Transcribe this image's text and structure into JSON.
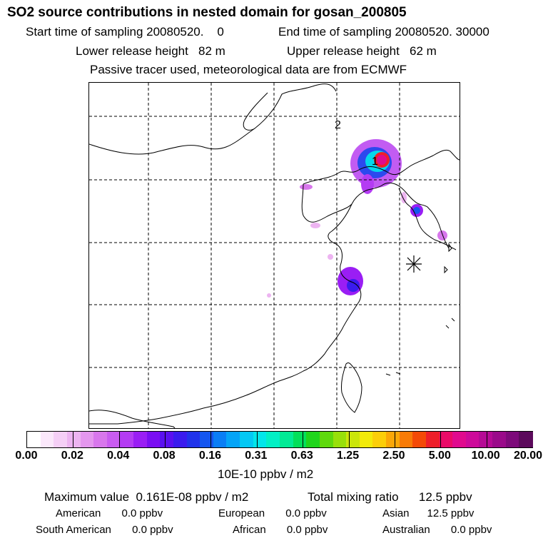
{
  "header": {
    "title": "SO2 source contributions in nested domain for gosan_200805",
    "start_label": "Start time of sampling 20080520.    0",
    "end_label": "End time of sampling 20080520. 30000",
    "lower_label": "Lower release height   82 m",
    "upper_label": "Upper release height   62 m",
    "tracer_label": "Passive tracer used, meteorological data are from ECMWF"
  },
  "chart_data": {
    "type": "heatmap",
    "title": "SO2 source contributions in nested domain for gosan_200805",
    "map_annotations": [
      "1",
      "2"
    ],
    "station_marker": "receptor-star",
    "grid": true,
    "colorbar": {
      "ticks": [
        "0.00",
        "0.02",
        "0.04",
        "0.08",
        "0.16",
        "0.31",
        "0.63",
        "1.25",
        "2.50",
        "5.00",
        "10.00",
        "20.00"
      ],
      "unit_label": "10E-10 ppbv / m2",
      "colors": [
        "#ffffff",
        "#fbe8fb",
        "#f5cff6",
        "#edb4f1",
        "#e497ee",
        "#d877ec",
        "#c95cf0",
        "#b43cf3",
        "#9a1ef4",
        "#7a0ef2",
        "#5a10f0",
        "#3a1bee",
        "#2033ea",
        "#1456f0",
        "#0a7ef5",
        "#05a4f7",
        "#04c8f4",
        "#03e6ea",
        "#03f0c5",
        "#02ea95",
        "#03df5a",
        "#20d51c",
        "#5fd90d",
        "#98e00a",
        "#cbe60a",
        "#f2ea0a",
        "#fbce09",
        "#faa708",
        "#f87b07",
        "#f44a07",
        "#ee1f2a",
        "#ea0b68",
        "#e00a8e",
        "#cd0a9a",
        "#b50a95",
        "#9a0a8a",
        "#7d0a7a",
        "#5c0a5c"
      ]
    },
    "plumes": [
      {
        "value": 5.0,
        "label": "1"
      },
      {
        "value": 0.16,
        "label": ""
      },
      {
        "value": 0.08,
        "label": ""
      },
      {
        "value": 0.04,
        "label": ""
      },
      {
        "value": 0.02,
        "label": ""
      }
    ]
  },
  "footer": {
    "max_label": "Maximum value  0.161E-08 ppbv / m2",
    "total_label": "Total mixing ratio      12.5 ppbv",
    "american": "American       0.0 ppbv",
    "european": "European       0.0 ppbv",
    "asian": "Asian      12.5 ppbv",
    "south_american": "South American       0.0 ppbv",
    "african": "African       0.0 ppbv",
    "australian": "Australian       0.0 ppbv"
  }
}
